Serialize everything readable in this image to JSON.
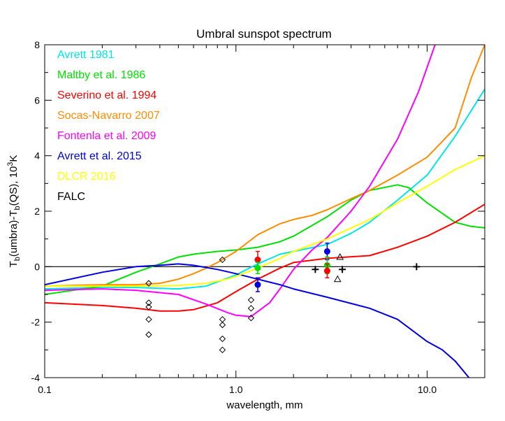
{
  "chart_data": {
    "type": "line",
    "title": "Umbral sunspot spectrum",
    "xlabel": "wavelength, mm",
    "ylabel": "T_b(umbra)-T_b(QS), 10^3K",
    "ylabel_parts": {
      "t1": "T",
      "s1": "b",
      "m1": "(umbra)-T",
      "s2": "b",
      "m2": "(QS), 10",
      "sup": "3",
      "m3": "K"
    },
    "xscale": "log",
    "xlim": [
      0.1,
      20
    ],
    "ylim": [
      -4,
      8
    ],
    "x_ticks": [
      0.1,
      1.0,
      10.0
    ],
    "x_tick_labels": [
      "0.1",
      "1.0",
      "10.0"
    ],
    "y_ticks": [
      -4,
      -2,
      0,
      2,
      4,
      6,
      8
    ],
    "y_tick_labels": [
      "-4",
      "-2",
      "0",
      "2",
      "4",
      "6",
      "8"
    ],
    "zero_line": true,
    "grid": false,
    "legend_position": "top-left",
    "series": [
      {
        "name": "Avrett 1981",
        "color": "#00e5e5",
        "x": [
          0.1,
          0.2,
          0.3,
          0.5,
          0.7,
          1.0,
          1.3,
          1.7,
          2.0,
          3.0,
          4.0,
          5.0,
          7.0,
          10.0,
          14.0,
          20.0
        ],
        "y": [
          -0.8,
          -0.75,
          -0.75,
          -0.8,
          -0.7,
          -0.3,
          0.1,
          0.45,
          0.55,
          0.8,
          1.2,
          1.6,
          2.4,
          3.3,
          4.7,
          6.4
        ]
      },
      {
        "name": "Maltby et al. 1986",
        "color": "#00e000",
        "x": [
          0.1,
          0.2,
          0.3,
          0.4,
          0.5,
          0.6,
          0.8,
          1.0,
          1.3,
          1.7,
          2.0,
          3.0,
          4.0,
          5.0,
          7.0,
          8.0,
          10.0,
          14.0,
          17.0,
          20.0
        ],
        "y": [
          -1.0,
          -0.7,
          -0.2,
          0.1,
          0.35,
          0.45,
          0.55,
          0.6,
          0.7,
          0.9,
          1.1,
          1.8,
          2.4,
          2.75,
          2.95,
          2.85,
          2.3,
          1.6,
          1.45,
          1.4
        ]
      },
      {
        "name": "Severino et al. 1994",
        "color": "#ff0000",
        "x": [
          0.1,
          0.2,
          0.3,
          0.4,
          0.5,
          0.6,
          0.8,
          1.0,
          1.3,
          1.7,
          2.0,
          3.0,
          5.0,
          7.0,
          10.0,
          14.0,
          20.0
        ],
        "y": [
          -1.3,
          -1.4,
          -1.5,
          -1.6,
          -1.6,
          -1.55,
          -1.3,
          -0.9,
          -0.45,
          -0.05,
          0.15,
          0.3,
          0.4,
          0.7,
          1.1,
          1.6,
          2.25
        ]
      },
      {
        "name": "Socas-Navarro 2007",
        "color": "#ff8c00",
        "x": [
          0.1,
          0.2,
          0.3,
          0.4,
          0.5,
          0.6,
          0.7,
          0.8,
          1.0,
          1.3,
          1.7,
          2.0,
          2.5,
          3.0,
          4.0,
          5.0,
          7.0,
          10.0,
          14.0,
          17.0,
          20.0
        ],
        "y": [
          -0.7,
          -0.65,
          -0.65,
          -0.6,
          -0.45,
          -0.25,
          -0.05,
          0.15,
          0.55,
          1.15,
          1.55,
          1.7,
          1.85,
          2.05,
          2.45,
          2.75,
          3.3,
          3.95,
          5.0,
          6.8,
          8.0
        ]
      },
      {
        "name": "Fontenla et al. 2009",
        "color": "#ff00ff",
        "x": [
          0.1,
          0.2,
          0.3,
          0.5,
          0.7,
          0.9,
          1.0,
          1.2,
          1.5,
          1.7,
          2.0,
          2.5,
          3.0,
          4.0,
          5.0,
          7.0,
          9.0,
          11.0
        ],
        "y": [
          -0.85,
          -0.8,
          -0.85,
          -1.0,
          -1.35,
          -1.65,
          -1.75,
          -1.8,
          -1.3,
          -0.8,
          -0.1,
          0.6,
          1.05,
          2.0,
          2.9,
          4.6,
          6.3,
          8.0
        ]
      },
      {
        "name": "Avrett et al. 2015",
        "color": "#0000e0",
        "x": [
          0.1,
          0.2,
          0.3,
          0.4,
          0.5,
          0.6,
          0.8,
          1.0,
          1.3,
          1.7,
          2.0,
          3.0,
          5.0,
          7.0,
          10.0,
          12.0,
          14.0,
          17.0,
          20.0
        ],
        "y": [
          -0.65,
          -0.2,
          0.0,
          0.05,
          0.1,
          0.05,
          -0.1,
          -0.25,
          -0.45,
          -0.65,
          -0.8,
          -1.1,
          -1.5,
          -1.9,
          -2.7,
          -3.0,
          -3.4,
          -4.1,
          -4.5
        ]
      },
      {
        "name": "DLCR 2016",
        "color": "#ffff00",
        "x": [
          0.1,
          0.2,
          0.3,
          0.5,
          0.7,
          0.9,
          1.0,
          1.3,
          1.7,
          2.0,
          3.0,
          5.0,
          7.0,
          10.0,
          14.0,
          20.0
        ],
        "y": [
          -0.7,
          -0.7,
          -0.7,
          -0.68,
          -0.6,
          -0.45,
          -0.35,
          -0.05,
          0.3,
          0.55,
          1.0,
          1.7,
          2.3,
          2.9,
          3.5,
          4.0
        ]
      },
      {
        "name": "FALC",
        "color": "#000000",
        "x": [],
        "y": []
      }
    ],
    "diamond_markers": {
      "color": "#000000",
      "points": [
        [
          0.35,
          -0.6
        ],
        [
          0.35,
          -1.3
        ],
        [
          0.35,
          -1.45
        ],
        [
          0.35,
          -1.9
        ],
        [
          0.35,
          -2.45
        ],
        [
          0.85,
          0.25
        ],
        [
          0.85,
          -1.9
        ],
        [
          0.85,
          -2.1
        ],
        [
          0.85,
          -2.6
        ],
        [
          0.85,
          -3.0
        ],
        [
          1.2,
          -1.2
        ],
        [
          1.2,
          -1.5
        ],
        [
          1.2,
          -1.85
        ]
      ]
    },
    "plus_markers": {
      "color": "#000000",
      "points": [
        [
          2.6,
          -0.1
        ],
        [
          3.6,
          -0.1
        ],
        [
          8.8,
          0.0
        ]
      ]
    },
    "triangle_markers": {
      "color": "#000000",
      "points": [
        [
          3.5,
          0.35
        ],
        [
          3.4,
          -0.45
        ]
      ]
    },
    "error_points": [
      {
        "x": 1.3,
        "y": 0.25,
        "err": 0.3,
        "color": "#ff0000"
      },
      {
        "x": 1.3,
        "y": -0.05,
        "err": 0.2,
        "color": "#00e000"
      },
      {
        "x": 1.3,
        "y": -0.65,
        "err": 0.25,
        "color": "#0000e0"
      },
      {
        "x": 3.0,
        "y": 0.55,
        "err": 0.3,
        "color": "#0000e0"
      },
      {
        "x": 3.0,
        "y": 0.05,
        "err": 0.3,
        "color": "#00e000"
      },
      {
        "x": 3.0,
        "y": -0.15,
        "err": 0.25,
        "color": "#ff0000"
      }
    ]
  }
}
